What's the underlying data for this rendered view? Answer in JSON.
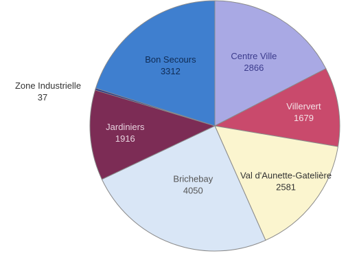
{
  "chart_data": {
    "type": "pie",
    "title": "",
    "start_angle_deg": 0,
    "direction": "clockwise",
    "slices": [
      {
        "label": "Centre Ville",
        "value": 2866,
        "color": "#a9a9e4",
        "text_color": "#3b3b8c"
      },
      {
        "label": "Villervert",
        "value": 1679,
        "color": "#c94a6c",
        "text_color": "#f4e3e8"
      },
      {
        "label": "Val d'Aunette-Gatelière",
        "value": 2581,
        "color": "#fbf5cf",
        "text_color": "#333333"
      },
      {
        "label": "Brichebay",
        "value": 4050,
        "color": "#d9e6f6",
        "text_color": "#555555"
      },
      {
        "label": "Jardiniers",
        "value": 1916,
        "color": "#7c2c55",
        "text_color": "#e8d3df"
      },
      {
        "label": "Zone Industrielle",
        "value": 37,
        "color": "#1f2c8a",
        "text_color": "#333333"
      },
      {
        "label": "Bon Secours",
        "value": 3312,
        "color": "#3f7fcf",
        "text_color": "#0f2b54"
      }
    ],
    "legend": "none"
  }
}
